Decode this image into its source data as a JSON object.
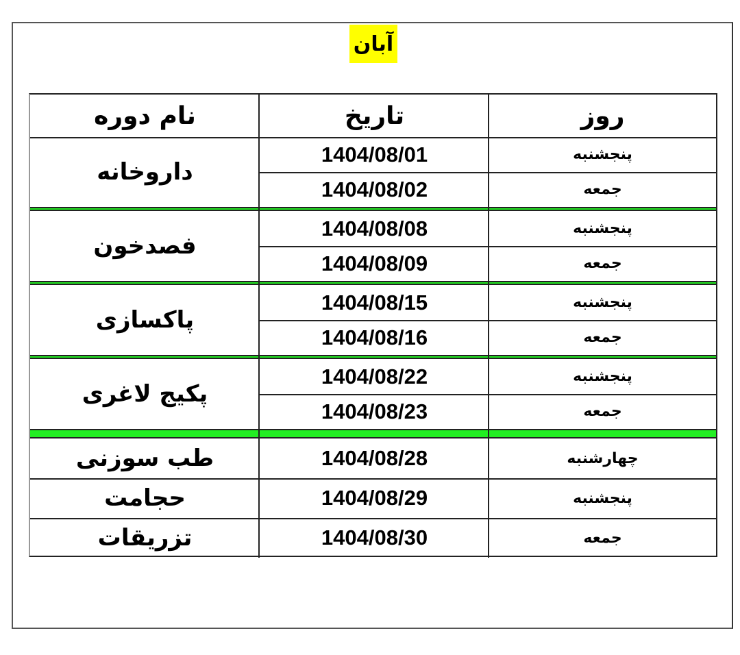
{
  "title": "آبان",
  "colors": {
    "title_highlight": "#ffff00",
    "separator": "#22ee22"
  },
  "table": {
    "headers": {
      "course": "نام دوره",
      "date": "تاریخ",
      "day": "روز"
    },
    "groups": [
      {
        "course": "داروخانه",
        "rows": [
          {
            "day": "پنجشنبه",
            "date": "1404/08/01"
          },
          {
            "day": "جمعه",
            "date": "1404/08/02"
          }
        ]
      },
      {
        "course": "فصدخون",
        "rows": [
          {
            "day": "پنجشنبه",
            "date": "1404/08/08"
          },
          {
            "day": "جمعه",
            "date": "1404/08/09"
          }
        ]
      },
      {
        "course": "پاکسازی",
        "rows": [
          {
            "day": "پنجشنبه",
            "date": "1404/08/15"
          },
          {
            "day": "جمعه",
            "date": "1404/08/16"
          }
        ]
      },
      {
        "course": "پکیج لاغری",
        "rows": [
          {
            "day": "پنجشنبه",
            "date": "1404/08/22"
          },
          {
            "day": "جمعه",
            "date": "1404/08/23"
          }
        ]
      },
      {
        "course": "طب سوزنی",
        "rows": [
          {
            "day": "چهارشنبه",
            "date": "1404/08/28"
          }
        ]
      },
      {
        "course": "حجامت",
        "rows": [
          {
            "day": "پنجشنبه",
            "date": "1404/08/29"
          }
        ]
      },
      {
        "course": "تزریقات",
        "rows": [
          {
            "day": "جمعه",
            "date": "1404/08/30"
          }
        ]
      }
    ]
  }
}
